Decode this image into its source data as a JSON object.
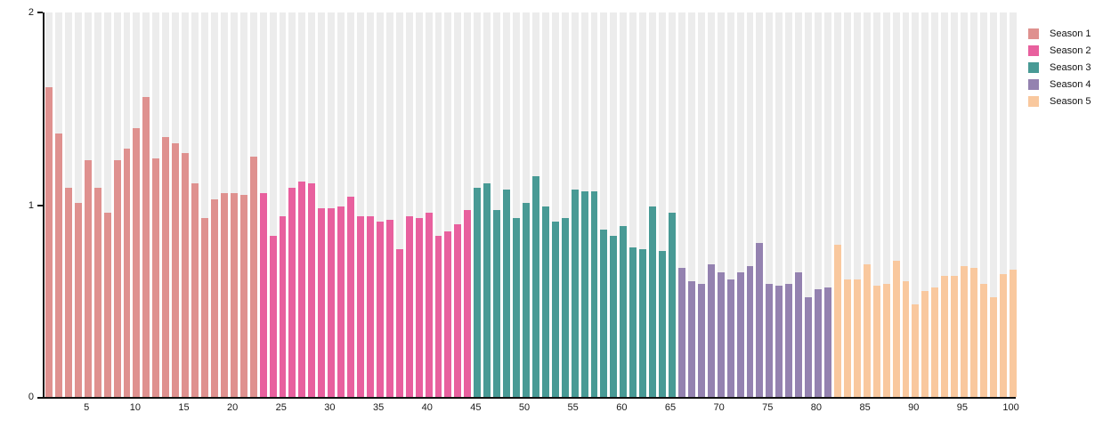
{
  "chart_data": {
    "type": "bar",
    "title": "",
    "xlabel": "",
    "ylabel": "",
    "ylim": [
      0,
      2
    ],
    "ytick_values": [
      2,
      1,
      0
    ],
    "ytick_labels": [
      "2",
      "1",
      "0"
    ],
    "xticks": [
      5,
      10,
      15,
      20,
      25,
      30,
      35,
      40,
      45,
      50,
      55,
      60,
      65,
      70,
      75,
      80,
      85,
      90,
      95,
      100
    ],
    "x_range": [
      1,
      100
    ],
    "grid": false,
    "bar_background_color": "#ececec",
    "axis_color": "#111111",
    "legend_position": "top-right",
    "series": [
      {
        "name": "Season 1",
        "color": "#df918f",
        "start_x": 1,
        "values": [
          1.61,
          1.37,
          1.09,
          1.01,
          1.23,
          1.09,
          0.96,
          1.23,
          1.29,
          1.4,
          1.56,
          1.24,
          1.35,
          1.32,
          1.27,
          1.11,
          0.93,
          1.03,
          1.06,
          1.06,
          1.05,
          1.25
        ]
      },
      {
        "name": "Season 2",
        "color": "#e8609e",
        "start_x": 23,
        "values": [
          1.06,
          0.84,
          0.94,
          1.09,
          1.12,
          1.11,
          0.98,
          0.98,
          0.99,
          1.04,
          0.94,
          0.94,
          0.91,
          0.92,
          0.77,
          0.94,
          0.93,
          0.96,
          0.84,
          0.86,
          0.9,
          0.97
        ]
      },
      {
        "name": "Season 3",
        "color": "#489a95",
        "start_x": 45,
        "values": [
          1.09,
          1.11,
          0.97,
          1.08,
          0.93,
          1.01,
          1.15,
          0.99,
          0.91,
          0.93,
          1.08,
          1.07,
          1.07,
          0.87,
          0.84,
          0.89,
          0.78,
          0.77,
          0.99,
          0.76,
          0.96
        ]
      },
      {
        "name": "Season 4",
        "color": "#9482b0",
        "start_x": 66,
        "values": [
          0.67,
          0.6,
          0.59,
          0.69,
          0.65,
          0.61,
          0.65,
          0.68,
          0.8,
          0.59,
          0.58,
          0.59,
          0.65,
          0.52,
          0.56,
          0.57
        ]
      },
      {
        "name": "Season 5",
        "color": "#f9c89e",
        "start_x": 82,
        "values": [
          0.79,
          0.61,
          0.61,
          0.69,
          0.58,
          0.59,
          0.71,
          0.6,
          0.48,
          0.55,
          0.57,
          0.63,
          0.63,
          0.68,
          0.67,
          0.59,
          0.52,
          0.64,
          0.66
        ]
      }
    ]
  }
}
